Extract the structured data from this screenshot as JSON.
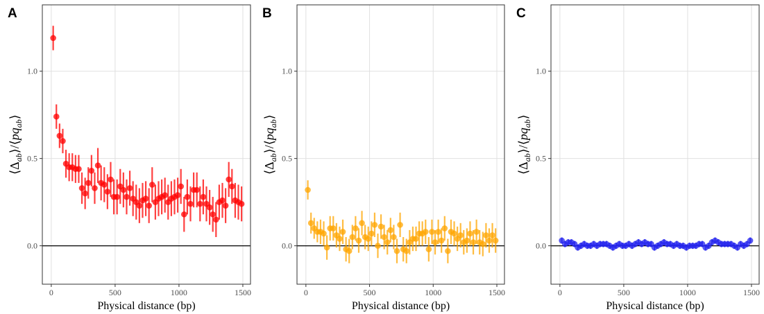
{
  "chart_data": [
    {
      "type": "scatter",
      "panel": "A",
      "color": "#ff0000",
      "xlabel": "Physical distance (bp)",
      "ylabel": {
        "open": "⟨",
        "a": "Δ",
        "sub1": "ab",
        "mid": "⟩/⟨",
        "b": "pq",
        "sub2": "ab",
        "close": "⟩"
      },
      "xlim": [
        -70,
        1560
      ],
      "ylim": [
        -0.22,
        1.38
      ],
      "xticks": [
        0,
        500,
        1000,
        1500
      ],
      "yticks": [
        0.0,
        0.5,
        1.0
      ],
      "ytick_labels": [
        "0.0",
        "0.5",
        "1.0"
      ],
      "hline_y": 0,
      "grid": true,
      "x": [
        15,
        40,
        65,
        90,
        115,
        140,
        165,
        190,
        215,
        240,
        265,
        290,
        315,
        340,
        365,
        390,
        415,
        440,
        465,
        490,
        515,
        540,
        565,
        590,
        615,
        640,
        665,
        690,
        715,
        740,
        765,
        790,
        815,
        840,
        865,
        890,
        915,
        940,
        965,
        990,
        1015,
        1040,
        1065,
        1090,
        1115,
        1140,
        1165,
        1190,
        1215,
        1240,
        1265,
        1290,
        1315,
        1340,
        1365,
        1390,
        1415,
        1440,
        1465,
        1490
      ],
      "y": [
        1.19,
        0.74,
        0.63,
        0.6,
        0.47,
        0.45,
        0.45,
        0.44,
        0.44,
        0.33,
        0.3,
        0.36,
        0.43,
        0.33,
        0.46,
        0.36,
        0.35,
        0.31,
        0.38,
        0.28,
        0.28,
        0.34,
        0.32,
        0.28,
        0.33,
        0.27,
        0.25,
        0.23,
        0.26,
        0.27,
        0.23,
        0.35,
        0.25,
        0.27,
        0.28,
        0.29,
        0.25,
        0.27,
        0.28,
        0.29,
        0.34,
        0.18,
        0.28,
        0.24,
        0.32,
        0.32,
        0.24,
        0.28,
        0.24,
        0.22,
        0.18,
        0.15,
        0.25,
        0.26,
        0.23,
        0.38,
        0.34,
        0.26,
        0.25,
        0.24
      ],
      "err": [
        0.07,
        0.07,
        0.07,
        0.07,
        0.08,
        0.08,
        0.08,
        0.08,
        0.08,
        0.09,
        0.09,
        0.09,
        0.09,
        0.09,
        0.1,
        0.1,
        0.1,
        0.1,
        0.1,
        0.1,
        0.1,
        0.1,
        0.1,
        0.1,
        0.1,
        0.1,
        0.1,
        0.1,
        0.1,
        0.1,
        0.1,
        0.1,
        0.1,
        0.1,
        0.1,
        0.1,
        0.1,
        0.1,
        0.1,
        0.1,
        0.1,
        0.1,
        0.1,
        0.1,
        0.1,
        0.1,
        0.1,
        0.1,
        0.1,
        0.1,
        0.1,
        0.1,
        0.1,
        0.1,
        0.1,
        0.1,
        0.1,
        0.1,
        0.1,
        0.1
      ]
    },
    {
      "type": "scatter",
      "panel": "B",
      "color": "#ffa500",
      "xlabel": "Physical distance (bp)",
      "ylabel": {
        "open": "⟨",
        "a": "Δ",
        "sub1": "ab",
        "mid": "⟩/⟨",
        "b": "pq",
        "sub2": "ab",
        "close": "⟩"
      },
      "xlim": [
        -70,
        1560
      ],
      "ylim": [
        -0.22,
        1.38
      ],
      "xticks": [
        0,
        500,
        1000,
        1500
      ],
      "yticks": [
        0.0,
        0.5,
        1.0
      ],
      "ytick_labels": [
        "0.0",
        "0.5",
        "1.0"
      ],
      "hline_y": 0,
      "grid": true,
      "x": [
        15,
        40,
        65,
        90,
        115,
        140,
        165,
        190,
        215,
        240,
        265,
        290,
        315,
        340,
        365,
        390,
        415,
        440,
        465,
        490,
        515,
        540,
        565,
        590,
        615,
        640,
        665,
        690,
        715,
        740,
        765,
        790,
        815,
        840,
        865,
        890,
        915,
        940,
        965,
        990,
        1015,
        1040,
        1065,
        1090,
        1115,
        1140,
        1165,
        1190,
        1215,
        1240,
        1265,
        1290,
        1315,
        1340,
        1365,
        1390,
        1415,
        1440,
        1465,
        1490
      ],
      "y": [
        0.32,
        0.13,
        0.1,
        0.08,
        0.08,
        0.07,
        -0.01,
        0.1,
        0.1,
        0.06,
        0.04,
        0.08,
        -0.02,
        -0.03,
        0.05,
        0.1,
        0.03,
        0.13,
        0.05,
        0.04,
        0.07,
        0.12,
        0.0,
        0.11,
        0.05,
        0.02,
        0.09,
        0.05,
        -0.03,
        0.12,
        -0.02,
        -0.03,
        0.02,
        0.04,
        0.04,
        0.07,
        0.07,
        0.08,
        -0.02,
        0.08,
        0.02,
        0.08,
        0.03,
        0.1,
        -0.03,
        0.08,
        0.07,
        0.04,
        0.06,
        0.02,
        0.03,
        0.07,
        0.02,
        0.08,
        0.02,
        0.01,
        0.06,
        0.03,
        0.06,
        0.03
      ],
      "err": [
        0.055,
        0.06,
        0.06,
        0.06,
        0.07,
        0.07,
        0.07,
        0.07,
        0.07,
        0.07,
        0.07,
        0.07,
        0.07,
        0.07,
        0.07,
        0.07,
        0.07,
        0.07,
        0.07,
        0.07,
        0.07,
        0.07,
        0.07,
        0.07,
        0.07,
        0.07,
        0.07,
        0.07,
        0.07,
        0.07,
        0.07,
        0.07,
        0.07,
        0.07,
        0.07,
        0.07,
        0.07,
        0.07,
        0.07,
        0.07,
        0.07,
        0.07,
        0.07,
        0.07,
        0.07,
        0.07,
        0.07,
        0.07,
        0.07,
        0.07,
        0.07,
        0.07,
        0.07,
        0.07,
        0.07,
        0.07,
        0.07,
        0.07,
        0.07,
        0.07
      ]
    },
    {
      "type": "scatter",
      "panel": "C",
      "color": "#2323ee",
      "xlabel": "Physical distance (bp)",
      "ylabel": {
        "open": "⟨",
        "a": "Δ",
        "sub1": "ab",
        "mid": "⟩/⟨",
        "b": "pq",
        "sub2": "ab",
        "close": "⟩"
      },
      "xlim": [
        -70,
        1560
      ],
      "ylim": [
        -0.22,
        1.38
      ],
      "xticks": [
        0,
        500,
        1000,
        1500
      ],
      "yticks": [
        0.0,
        0.5,
        1.0
      ],
      "ytick_labels": [
        "0.0",
        "0.5",
        "1.0"
      ],
      "hline_y": 0,
      "grid": true,
      "x": [
        15,
        40,
        65,
        90,
        115,
        140,
        165,
        190,
        215,
        240,
        265,
        290,
        315,
        340,
        365,
        390,
        415,
        440,
        465,
        490,
        515,
        540,
        565,
        590,
        615,
        640,
        665,
        690,
        715,
        740,
        765,
        790,
        815,
        840,
        865,
        890,
        915,
        940,
        965,
        990,
        1015,
        1040,
        1065,
        1090,
        1115,
        1140,
        1165,
        1190,
        1215,
        1240,
        1265,
        1290,
        1315,
        1340,
        1365,
        1390,
        1415,
        1440,
        1465,
        1490
      ],
      "y": [
        0.03,
        0.01,
        0.02,
        0.02,
        0.01,
        -0.01,
        0.0,
        0.01,
        0.0,
        0.0,
        0.01,
        0.0,
        0.01,
        0.01,
        0.01,
        0.0,
        -0.01,
        0.0,
        0.01,
        0.0,
        0.0,
        0.01,
        0.0,
        0.01,
        0.02,
        0.01,
        0.02,
        0.01,
        0.01,
        -0.01,
        0.0,
        0.01,
        0.02,
        0.01,
        0.01,
        0.0,
        0.01,
        0.0,
        0.0,
        -0.01,
        0.0,
        0.0,
        0.0,
        0.01,
        0.01,
        -0.01,
        0.0,
        0.02,
        0.03,
        0.02,
        0.01,
        0.01,
        0.01,
        0.01,
        0.0,
        -0.01,
        0.01,
        0.0,
        0.01,
        0.03
      ],
      "err": [
        0.018,
        0.018,
        0.018,
        0.018,
        0.018,
        0.018,
        0.018,
        0.018,
        0.018,
        0.018,
        0.018,
        0.018,
        0.018,
        0.018,
        0.018,
        0.018,
        0.018,
        0.018,
        0.018,
        0.018,
        0.018,
        0.018,
        0.018,
        0.018,
        0.018,
        0.018,
        0.018,
        0.018,
        0.018,
        0.018,
        0.018,
        0.018,
        0.018,
        0.018,
        0.018,
        0.018,
        0.018,
        0.018,
        0.018,
        0.018,
        0.018,
        0.018,
        0.018,
        0.018,
        0.018,
        0.018,
        0.018,
        0.018,
        0.018,
        0.018,
        0.018,
        0.018,
        0.018,
        0.018,
        0.018,
        0.018,
        0.018,
        0.018,
        0.018,
        0.018
      ]
    }
  ]
}
